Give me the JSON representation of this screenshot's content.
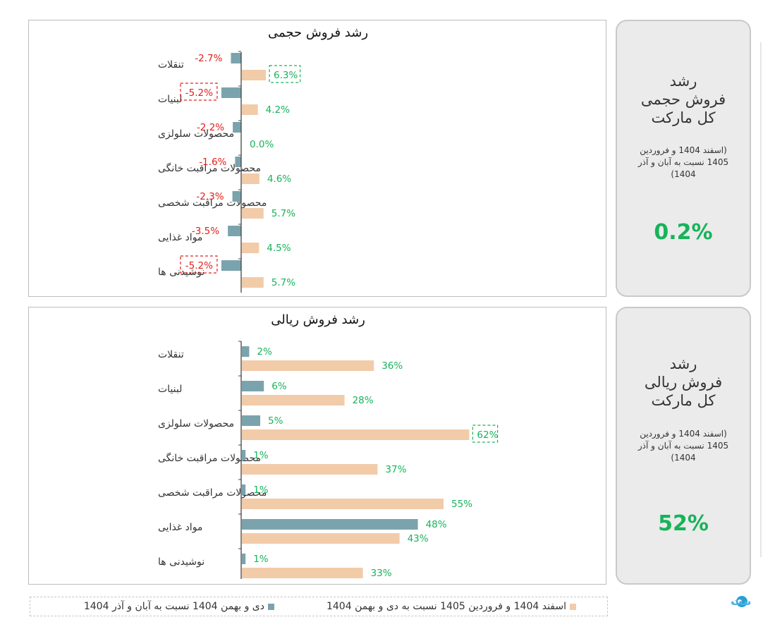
{
  "colors": {
    "prev_series": "#7ba3ad",
    "curr_series": "#f2cba9",
    "positive": "#17b35a",
    "negative": "#e0201b",
    "panel_border": "#bdbdbd",
    "card_bg": "#ebebeb"
  },
  "chart_data": [
    {
      "type": "bar",
      "orientation": "horizontal",
      "title": "رشد فروش حجمی",
      "categories": [
        "تنقلات",
        "لبنیات",
        "محصولات سلولزی",
        "محصولات مراقبت خانگی",
        "محصولات مراقبت شخصی",
        "مواد غذایی",
        "نوشیدنی ها"
      ],
      "series": [
        {
          "name": "دی و بهمن 1404 نسبت به آبان و آذر 1404",
          "values": [
            -2.7,
            -5.2,
            -2.2,
            -1.6,
            -2.3,
            -3.5,
            -5.2
          ],
          "labels": [
            "-2.7%",
            "-5.2%",
            "-2.2%",
            "-1.6%",
            "-2.3%",
            "-3.5%",
            "-5.2%"
          ]
        },
        {
          "name": "اسفند 1404 و فروردین 1405 نسبت به دی و بهمن 1404",
          "values": [
            6.3,
            4.2,
            0.0,
            4.6,
            5.7,
            4.5,
            5.7
          ],
          "labels": [
            "6.3%",
            "4.2%",
            "0.0%",
            "4.6%",
            "5.7%",
            "4.5%",
            "5.7%"
          ]
        }
      ],
      "highlighted": [
        [
          0,
          1
        ],
        [
          1,
          0
        ],
        [
          6,
          0
        ]
      ],
      "grid": false
    },
    {
      "type": "bar",
      "orientation": "horizontal",
      "title": "رشد فروش ریالی",
      "categories": [
        "تنقلات",
        "لبنیات",
        "محصولات سلولزی",
        "محصولات مراقبت خانگی",
        "محصولات مراقبت شخصی",
        "مواد غذایی",
        "نوشیدنی ها"
      ],
      "series": [
        {
          "name": "دی و بهمن 1404 نسبت به آبان و آذر 1404",
          "values": [
            2,
            6,
            5,
            1,
            1,
            48,
            1
          ],
          "labels": [
            "2%",
            "6%",
            "5%",
            "1%",
            "1%",
            "48%",
            "1%"
          ]
        },
        {
          "name": "اسفند 1404 و فروردین 1405 نسبت به دی و بهمن 1404",
          "values": [
            36,
            28,
            62,
            37,
            55,
            43,
            33
          ],
          "labels": [
            "36%",
            "28%",
            "62%",
            "37%",
            "55%",
            "43%",
            "33%"
          ]
        }
      ],
      "highlighted": [
        [
          2,
          1
        ]
      ],
      "grid": false
    }
  ],
  "cards": [
    {
      "title_lines": [
        "رشد",
        "فروش حجمی",
        "کل مارکت"
      ],
      "note": "(اسفند 1404 و فروردین 1405 نسبت به آبان و آذر 1404)",
      "value": "0.2%"
    },
    {
      "title_lines": [
        "رشد",
        "فروش ریالی",
        "کل مارکت"
      ],
      "note": "(اسفند 1404 و فروردین 1405 نسبت به آبان و آذر 1404)",
      "value": "52%"
    }
  ],
  "legend": {
    "prev": "دی و بهمن 1404 نسبت به آبان و آذر 1404",
    "curr": "اسفند 1404 و فروردین 1405 نسبت به دی و بهمن 1404"
  },
  "brand": {
    "logo_text": "پیوست",
    "logo_icon": "brand-circle-icon"
  }
}
